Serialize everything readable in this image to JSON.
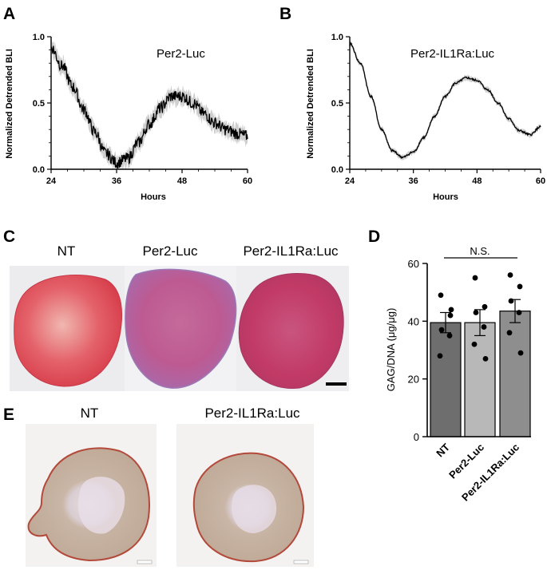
{
  "panels": {
    "A": {
      "letter": "A",
      "title": "Per2-Luc"
    },
    "B": {
      "letter": "B",
      "title": "Per2-IL1Ra:Luc"
    },
    "C": {
      "letter": "C",
      "captions": [
        "NT",
        "Per2-Luc",
        "Per2-IL1Ra:Luc"
      ]
    },
    "D": {
      "letter": "D",
      "significance": "N.S."
    },
    "E": {
      "letter": "E",
      "captions": [
        "NT",
        "Per2-IL1Ra:Luc"
      ]
    }
  },
  "chart_data": [
    {
      "panel": "A",
      "type": "line",
      "title": "Per2-Luc",
      "xlabel": "Hours",
      "ylabel": "Normalized Detrended BLI",
      "xlim": [
        24,
        60
      ],
      "ylim": [
        0,
        1.0
      ],
      "xticks": [
        "24",
        "36",
        "48",
        "60"
      ],
      "yticks": [
        "0.0",
        "0.5",
        "1.0"
      ],
      "series": [
        {
          "x": [
            24,
            26,
            28,
            30,
            32,
            34,
            36,
            38,
            40,
            42,
            44,
            46,
            48,
            50,
            52,
            54,
            56,
            58,
            60
          ],
          "values": [
            0.92,
            0.78,
            0.62,
            0.45,
            0.28,
            0.12,
            0.05,
            0.08,
            0.2,
            0.34,
            0.46,
            0.55,
            0.55,
            0.5,
            0.42,
            0.35,
            0.3,
            0.27,
            0.25
          ],
          "error_band": "grey"
        }
      ]
    },
    {
      "panel": "B",
      "type": "line",
      "title": "Per2-IL1Ra:Luc",
      "xlabel": "Hours",
      "ylabel": "Normalized Detrended BLI",
      "xlim": [
        24,
        60
      ],
      "ylim": [
        0,
        1.0
      ],
      "xticks": [
        "24",
        "36",
        "48",
        "60"
      ],
      "yticks": [
        "0.0",
        "0.5",
        "1.0"
      ],
      "series": [
        {
          "x": [
            24,
            26,
            28,
            30,
            32,
            34,
            36,
            38,
            40,
            42,
            44,
            46,
            48,
            50,
            52,
            54,
            56,
            58,
            60
          ],
          "values": [
            0.95,
            0.8,
            0.55,
            0.3,
            0.14,
            0.09,
            0.13,
            0.24,
            0.4,
            0.55,
            0.65,
            0.69,
            0.67,
            0.6,
            0.5,
            0.38,
            0.29,
            0.26,
            0.32
          ],
          "error_band": "grey"
        }
      ]
    },
    {
      "panel": "D",
      "type": "bar",
      "ylabel": "GAG/DNA (μg/μg)",
      "ylim": [
        0,
        60
      ],
      "yticks": [
        "0",
        "20",
        "40",
        "60"
      ],
      "categories": [
        "NT",
        "Per2-Luc",
        "Per2-IL1Ra:Luc"
      ],
      "values": [
        39.5,
        39.5,
        43.5
      ],
      "sem": [
        3.5,
        4.5,
        4.0
      ],
      "points": [
        [
          49,
          42,
          37,
          35,
          28,
          44
        ],
        [
          55,
          45,
          43,
          38,
          32,
          27
        ],
        [
          56,
          52,
          47,
          43,
          36,
          29
        ]
      ],
      "bar_colors": [
        "#6e6e6e",
        "#b8b8b8",
        "#8e8e8e"
      ],
      "annotation": "N.S."
    }
  ]
}
